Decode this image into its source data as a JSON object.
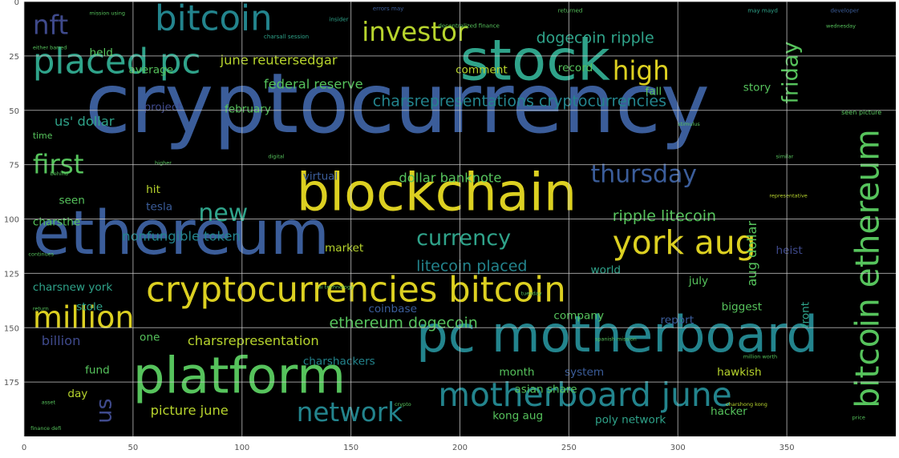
{
  "chart_data": {
    "type": "wordcloud",
    "xlim": [
      0,
      400
    ],
    "ylim": [
      200,
      0
    ],
    "grid": true,
    "background": "#000000",
    "axes_facecolor": "#ffffff",
    "grid_color": "#cccccc",
    "x_ticks": [
      {
        "value": 0,
        "label": "0"
      },
      {
        "value": 50,
        "label": "50"
      },
      {
        "value": 100,
        "label": "100"
      },
      {
        "value": 150,
        "label": "150"
      },
      {
        "value": 200,
        "label": "200"
      },
      {
        "value": 250,
        "label": "250"
      },
      {
        "value": 300,
        "label": "300"
      },
      {
        "value": 350,
        "label": "350"
      }
    ],
    "y_ticks": [
      {
        "value": 0,
        "label": "0"
      },
      {
        "value": 25,
        "label": "25"
      },
      {
        "value": 50,
        "label": "50"
      },
      {
        "value": 75,
        "label": "75"
      },
      {
        "value": 100,
        "label": "100"
      },
      {
        "value": 125,
        "label": "125"
      },
      {
        "value": 150,
        "label": "150"
      },
      {
        "value": 175,
        "label": "175"
      }
    ],
    "words": [
      {
        "text": "cryptocurrency",
        "x": 28,
        "y": 60,
        "size": 38,
        "color": "#3b5d9a",
        "rotate": 0
      },
      {
        "text": "ethereum",
        "x": 4,
        "y": 116,
        "size": 28,
        "color": "#3b5d9a",
        "rotate": 0
      },
      {
        "text": "stock",
        "x": 200,
        "y": 36,
        "size": 26,
        "color": "#2fa38a",
        "rotate": 0
      },
      {
        "text": "blockchain",
        "x": 125,
        "y": 96,
        "size": 24,
        "color": "#dcd021",
        "rotate": 0
      },
      {
        "text": "pc motherboard",
        "x": 180,
        "y": 161,
        "size": 23,
        "color": "#23848d",
        "rotate": 0
      },
      {
        "text": "platform",
        "x": 50,
        "y": 180,
        "size": 23,
        "color": "#56c35c",
        "rotate": 0
      },
      {
        "text": "cryptocurrencies bitcoin",
        "x": 56,
        "y": 138,
        "size": 16,
        "color": "#dcd021",
        "rotate": 0
      },
      {
        "text": "placed pc",
        "x": 4,
        "y": 33,
        "size": 16,
        "color": "#2fa38a",
        "rotate": 0
      },
      {
        "text": "bitcoin",
        "x": 60,
        "y": 13,
        "size": 16,
        "color": "#23848d",
        "rotate": 0
      },
      {
        "text": "motherboard june",
        "x": 190,
        "y": 186,
        "size": 15,
        "color": "#23848d",
        "rotate": 0
      },
      {
        "text": "york aug",
        "x": 270,
        "y": 116,
        "size": 15,
        "color": "#dcd021",
        "rotate": 0
      },
      {
        "text": "bitcoin ethereum",
        "x": 392,
        "y": 187,
        "size": 15,
        "color": "#56c35c",
        "rotate": -90
      },
      {
        "text": "million",
        "x": 4,
        "y": 150,
        "size": 14,
        "color": "#dcd021",
        "rotate": 0
      },
      {
        "text": "investor",
        "x": 155,
        "y": 18,
        "size": 12,
        "color": "#b7d42d",
        "rotate": 0
      },
      {
        "text": "high",
        "x": 270,
        "y": 36,
        "size": 12,
        "color": "#dcd021",
        "rotate": 0
      },
      {
        "text": "nft",
        "x": 4,
        "y": 15,
        "size": 12,
        "color": "#3f4a8c",
        "rotate": 0
      },
      {
        "text": "network",
        "x": 125,
        "y": 193,
        "size": 12,
        "color": "#23848d",
        "rotate": 0
      },
      {
        "text": "first",
        "x": 4,
        "y": 79,
        "size": 12,
        "color": "#56c35c",
        "rotate": 0
      },
      {
        "text": "new",
        "x": 80,
        "y": 101,
        "size": 11,
        "color": "#2fa38a",
        "rotate": 0
      },
      {
        "text": "thursday",
        "x": 260,
        "y": 83,
        "size": 11,
        "color": "#3b5d9a",
        "rotate": 0
      },
      {
        "text": "currency",
        "x": 180,
        "y": 112,
        "size": 10,
        "color": "#2fa38a",
        "rotate": 0
      },
      {
        "text": "friday",
        "x": 355,
        "y": 47,
        "size": 10,
        "color": "#56c35c",
        "rotate": -90
      },
      {
        "text": "us",
        "x": 40,
        "y": 194,
        "size": 10,
        "color": "#3f4a8c",
        "rotate": -90
      },
      {
        "text": "charsrepresentations cryptocurrencies",
        "x": 160,
        "y": 48,
        "size": 7,
        "color": "#23848d",
        "rotate": 0
      },
      {
        "text": "dogecoin ripple",
        "x": 235,
        "y": 19,
        "size": 7,
        "color": "#2fa38a",
        "rotate": 0
      },
      {
        "text": "ripple litecoin",
        "x": 270,
        "y": 101,
        "size": 7,
        "color": "#56c35c",
        "rotate": 0
      },
      {
        "text": "litecoin placed",
        "x": 180,
        "y": 124,
        "size": 7,
        "color": "#23848d",
        "rotate": 0
      },
      {
        "text": "ethereum dogecoin",
        "x": 140,
        "y": 150,
        "size": 7,
        "color": "#56c35c",
        "rotate": 0
      },
      {
        "text": "june reutersedgar",
        "x": 90,
        "y": 29,
        "size": 6,
        "color": "#b7d42d",
        "rotate": 0
      },
      {
        "text": "federal reserve",
        "x": 110,
        "y": 40,
        "size": 6,
        "color": "#56c35c",
        "rotate": 0
      },
      {
        "text": "us' dollar",
        "x": 14,
        "y": 57,
        "size": 6,
        "color": "#2fa38a",
        "rotate": 0
      },
      {
        "text": "february",
        "x": 92,
        "y": 51,
        "size": 5,
        "color": "#56c35c",
        "rotate": 0
      },
      {
        "text": "project",
        "x": 55,
        "y": 50,
        "size": 5,
        "color": "#3f4a8c",
        "rotate": 0
      },
      {
        "text": "comment",
        "x": 198,
        "y": 33,
        "size": 5,
        "color": "#b7d42d",
        "rotate": 0
      },
      {
        "text": "record",
        "x": 245,
        "y": 32,
        "size": 5,
        "color": "#56c35c",
        "rotate": 0
      },
      {
        "text": "fall",
        "x": 285,
        "y": 43,
        "size": 5,
        "color": "#56c35c",
        "rotate": 0
      },
      {
        "text": "story",
        "x": 330,
        "y": 41,
        "size": 5,
        "color": "#56c35c",
        "rotate": 0
      },
      {
        "text": "held",
        "x": 30,
        "y": 25,
        "size": 5,
        "color": "#56c35c",
        "rotate": 0
      },
      {
        "text": "average",
        "x": 48,
        "y": 33,
        "size": 5,
        "color": "#56c35c",
        "rotate": 0
      },
      {
        "text": "virtual",
        "x": 128,
        "y": 82,
        "size": 5,
        "color": "#3b5d9a",
        "rotate": 0
      },
      {
        "text": "dollar banknote",
        "x": 172,
        "y": 83,
        "size": 6,
        "color": "#56c35c",
        "rotate": 0
      },
      {
        "text": "hit",
        "x": 56,
        "y": 88,
        "size": 5,
        "color": "#b7d42d",
        "rotate": 0
      },
      {
        "text": "seen",
        "x": 16,
        "y": 93,
        "size": 5,
        "color": "#56c35c",
        "rotate": 0
      },
      {
        "text": "tesla",
        "x": 56,
        "y": 96,
        "size": 5,
        "color": "#3b5d9a",
        "rotate": 0
      },
      {
        "text": "charsthe",
        "x": 4,
        "y": 103,
        "size": 5,
        "color": "#56c35c",
        "rotate": 0
      },
      {
        "text": "nonfungible token",
        "x": 45,
        "y": 110,
        "size": 6,
        "color": "#23848d",
        "rotate": 0
      },
      {
        "text": "market",
        "x": 138,
        "y": 115,
        "size": 5,
        "color": "#b7d42d",
        "rotate": 0
      },
      {
        "text": "aug dollar",
        "x": 336,
        "y": 131,
        "size": 6,
        "color": "#56c35c",
        "rotate": -90
      },
      {
        "text": "world",
        "x": 260,
        "y": 125,
        "size": 5,
        "color": "#2fa38a",
        "rotate": 0
      },
      {
        "text": "july",
        "x": 305,
        "y": 130,
        "size": 5,
        "color": "#56c35c",
        "rotate": 0
      },
      {
        "text": "charsnew york",
        "x": 4,
        "y": 133,
        "size": 5,
        "color": "#2fa38a",
        "rotate": 0
      },
      {
        "text": "stole",
        "x": 24,
        "y": 142,
        "size": 5,
        "color": "#2fa38a",
        "rotate": 0
      },
      {
        "text": "coinbase",
        "x": 158,
        "y": 143,
        "size": 5,
        "color": "#3b5d9a",
        "rotate": 0
      },
      {
        "text": "company",
        "x": 243,
        "y": 146,
        "size": 5,
        "color": "#56c35c",
        "rotate": 0
      },
      {
        "text": "report",
        "x": 292,
        "y": 148,
        "size": 5,
        "color": "#3b5d9a",
        "rotate": 0
      },
      {
        "text": "biggest",
        "x": 320,
        "y": 142,
        "size": 5,
        "color": "#56c35c",
        "rotate": 0
      },
      {
        "text": "front",
        "x": 360,
        "y": 150,
        "size": 5,
        "color": "#2fa38a",
        "rotate": -90
      },
      {
        "text": "billion",
        "x": 8,
        "y": 158,
        "size": 6,
        "color": "#3f4a8c",
        "rotate": 0
      },
      {
        "text": "one",
        "x": 53,
        "y": 156,
        "size": 5,
        "color": "#56c35c",
        "rotate": 0
      },
      {
        "text": "charsrepresentation",
        "x": 75,
        "y": 158,
        "size": 6,
        "color": "#b7d42d",
        "rotate": 0
      },
      {
        "text": "charshackers",
        "x": 128,
        "y": 167,
        "size": 5,
        "color": "#23848d",
        "rotate": 0
      },
      {
        "text": "heist",
        "x": 345,
        "y": 116,
        "size": 5,
        "color": "#3f4a8c",
        "rotate": 0
      },
      {
        "text": "fund",
        "x": 28,
        "y": 171,
        "size": 5,
        "color": "#56c35c",
        "rotate": 0
      },
      {
        "text": "month",
        "x": 218,
        "y": 172,
        "size": 5,
        "color": "#56c35c",
        "rotate": 0
      },
      {
        "text": "system",
        "x": 248,
        "y": 172,
        "size": 5,
        "color": "#3b5d9a",
        "rotate": 0
      },
      {
        "text": "hawkish",
        "x": 318,
        "y": 172,
        "size": 5,
        "color": "#b7d42d",
        "rotate": 0
      },
      {
        "text": "asian share",
        "x": 225,
        "y": 180,
        "size": 5,
        "color": "#56c35c",
        "rotate": 0
      },
      {
        "text": "day",
        "x": 20,
        "y": 182,
        "size": 5,
        "color": "#b7d42d",
        "rotate": 0
      },
      {
        "text": "picture june",
        "x": 58,
        "y": 190,
        "size": 6,
        "color": "#b7d42d",
        "rotate": 0
      },
      {
        "text": "kong aug",
        "x": 215,
        "y": 192,
        "size": 5,
        "color": "#56c35c",
        "rotate": 0
      },
      {
        "text": "poly network",
        "x": 262,
        "y": 194,
        "size": 5,
        "color": "#2fa38a",
        "rotate": 0
      },
      {
        "text": "hacker",
        "x": 315,
        "y": 190,
        "size": 5,
        "color": "#56c35c",
        "rotate": 0
      },
      {
        "text": "time",
        "x": 4,
        "y": 63,
        "size": 4,
        "color": "#56c35c",
        "rotate": 0
      },
      {
        "text": "developer",
        "x": 370,
        "y": 5,
        "size": 2.6,
        "color": "#3b5d9a",
        "rotate": 0
      },
      {
        "text": "returned",
        "x": 245,
        "y": 5,
        "size": 2.6,
        "color": "#56c35c",
        "rotate": 0
      },
      {
        "text": "may mayd",
        "x": 332,
        "y": 5,
        "size": 2.6,
        "color": "#2fa38a",
        "rotate": 0
      },
      {
        "text": "errors may",
        "x": 160,
        "y": 4,
        "size": 2.6,
        "color": "#3b5d9a",
        "rotate": 0
      },
      {
        "text": "insider",
        "x": 140,
        "y": 9,
        "size": 2.6,
        "color": "#2fa38a",
        "rotate": 0
      },
      {
        "text": "decentralized finance",
        "x": 190,
        "y": 12,
        "size": 2.6,
        "color": "#56c35c",
        "rotate": 0
      },
      {
        "text": "charsall session",
        "x": 110,
        "y": 17,
        "size": 2.6,
        "color": "#2fa38a",
        "rotate": 0
      },
      {
        "text": "mission using",
        "x": 30,
        "y": 6,
        "size": 2.4,
        "color": "#56c35c",
        "rotate": 0
      },
      {
        "text": "either barred",
        "x": 4,
        "y": 22,
        "size": 2.4,
        "color": "#56c35c",
        "rotate": 0
      },
      {
        "text": "wednesday",
        "x": 368,
        "y": 12,
        "size": 2.4,
        "color": "#56c35c",
        "rotate": 0
      },
      {
        "text": "seen picture",
        "x": 375,
        "y": 52,
        "size": 3,
        "color": "#56c35c",
        "rotate": 0
      },
      {
        "text": "stimulus",
        "x": 300,
        "y": 57,
        "size": 2.4,
        "color": "#56c35c",
        "rotate": 0
      },
      {
        "text": "digital",
        "x": 112,
        "y": 72,
        "size": 2.4,
        "color": "#56c35c",
        "rotate": 0
      },
      {
        "text": "representative",
        "x": 342,
        "y": 90,
        "size": 2.4,
        "color": "#b7d42d",
        "rotate": 0
      },
      {
        "text": "behind",
        "x": 12,
        "y": 80,
        "size": 2.4,
        "color": "#56c35c",
        "rotate": 0
      },
      {
        "text": "higher",
        "x": 60,
        "y": 75,
        "size": 2.4,
        "color": "#56c35c",
        "rotate": 0
      },
      {
        "text": "similar",
        "x": 345,
        "y": 72,
        "size": 2.4,
        "color": "#56c35c",
        "rotate": 0
      },
      {
        "text": "ai technology",
        "x": 135,
        "y": 132,
        "size": 2.4,
        "color": "#56c35c",
        "rotate": 0
      },
      {
        "text": "tuesday",
        "x": 228,
        "y": 135,
        "size": 2.4,
        "color": "#56c35c",
        "rotate": 0
      },
      {
        "text": "million worth",
        "x": 330,
        "y": 164,
        "size": 2.4,
        "color": "#56c35c",
        "rotate": 0
      },
      {
        "text": "charshong kong",
        "x": 322,
        "y": 186,
        "size": 2.4,
        "color": "#b7d42d",
        "rotate": 0
      },
      {
        "text": "asset",
        "x": 8,
        "y": 185,
        "size": 2.4,
        "color": "#56c35c",
        "rotate": 0
      },
      {
        "text": "crypto",
        "x": 170,
        "y": 186,
        "size": 2.4,
        "color": "#56c35c",
        "rotate": 0
      },
      {
        "text": "finance defi",
        "x": 3,
        "y": 197,
        "size": 2.4,
        "color": "#56c35c",
        "rotate": 0
      },
      {
        "text": "price",
        "x": 380,
        "y": 192,
        "size": 2.4,
        "color": "#56c35c",
        "rotate": 0
      },
      {
        "text": "continues",
        "x": 2,
        "y": 117,
        "size": 2.4,
        "color": "#56c35c",
        "rotate": 0
      },
      {
        "text": "return",
        "x": 4,
        "y": 142,
        "size": 2.4,
        "color": "#56c35c",
        "rotate": 0
      },
      {
        "text": "spanish mission",
        "x": 262,
        "y": 156,
        "size": 2.4,
        "color": "#56c35c",
        "rotate": 0
      }
    ]
  }
}
